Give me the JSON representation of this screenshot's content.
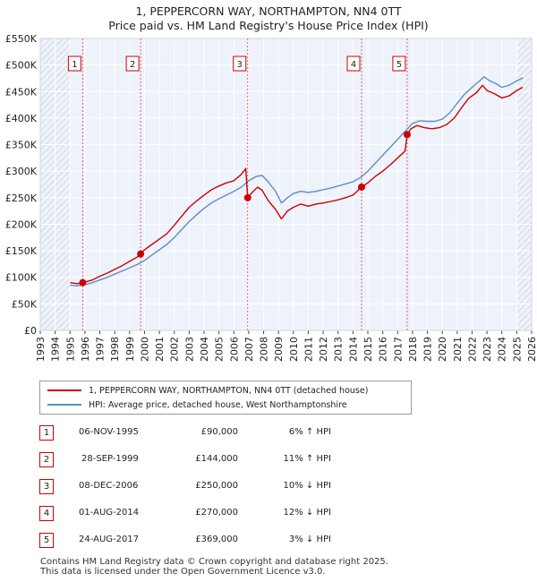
{
  "chart_data": {
    "type": "line",
    "title": "1, PEPPERCORN WAY, NORTHAMPTON, NN4 0TT",
    "subtitle": "Price paid vs. HM Land Registry's House Price Index (HPI)",
    "xlim": [
      1993,
      2026
    ],
    "ylim": [
      0,
      550000
    ],
    "x_ticks": [
      "1993",
      "1994",
      "1995",
      "1996",
      "1997",
      "1998",
      "1999",
      "2000",
      "2001",
      "2002",
      "2003",
      "2004",
      "2005",
      "2006",
      "2007",
      "2008",
      "2009",
      "2010",
      "2011",
      "2012",
      "2013",
      "2014",
      "2015",
      "2016",
      "2017",
      "2018",
      "2019",
      "2020",
      "2021",
      "2022",
      "2023",
      "2024",
      "2025",
      "2026"
    ],
    "y_ticks": [
      {
        "v": 0,
        "label": "£0"
      },
      {
        "v": 50000,
        "label": "£50K"
      },
      {
        "v": 100000,
        "label": "£100K"
      },
      {
        "v": 150000,
        "label": "£150K"
      },
      {
        "v": 200000,
        "label": "£200K"
      },
      {
        "v": 250000,
        "label": "£250K"
      },
      {
        "v": 300000,
        "label": "£300K"
      },
      {
        "v": 350000,
        "label": "£350K"
      },
      {
        "v": 400000,
        "label": "£400K"
      },
      {
        "v": 450000,
        "label": "£450K"
      },
      {
        "v": 500000,
        "label": "£500K"
      },
      {
        "v": 550000,
        "label": "£550K"
      }
    ],
    "hatched_before": 1995.0,
    "hatched_after": 2025.0,
    "series": [
      {
        "name": "1, PEPPERCORN WAY, NORTHAMPTON, NN4 0TT (detached house)",
        "color": "#cc0000",
        "x": [
          1995.0,
          1995.5,
          1995.85,
          1996.5,
          1997.0,
          1997.5,
          1998.0,
          1998.5,
          1999.0,
          1999.5,
          1999.74,
          2000.0,
          2000.5,
          2001.0,
          2001.5,
          2002.0,
          2002.5,
          2003.0,
          2003.5,
          2004.0,
          2004.5,
          2005.0,
          2005.5,
          2006.0,
          2006.5,
          2006.8,
          2006.93,
          2007.3,
          2007.6,
          2007.9,
          2008.3,
          2008.8,
          2009.2,
          2009.6,
          2010.0,
          2010.5,
          2011.0,
          2011.5,
          2012.0,
          2012.5,
          2013.0,
          2013.5,
          2014.0,
          2014.58,
          2015.0,
          2015.5,
          2016.0,
          2016.5,
          2017.0,
          2017.5,
          2017.64,
          2017.9,
          2018.3,
          2018.8,
          2019.3,
          2019.8,
          2020.3,
          2020.8,
          2021.3,
          2021.8,
          2022.3,
          2022.7,
          2023.0,
          2023.5,
          2024.0,
          2024.5,
          2025.0,
          2025.4
        ],
        "y": [
          90000,
          88000,
          90000,
          95000,
          102000,
          108000,
          115000,
          122000,
          130000,
          138000,
          144000,
          152000,
          162000,
          172000,
          182000,
          198000,
          215000,
          232000,
          244000,
          255000,
          265000,
          272000,
          278000,
          282000,
          294000,
          305000,
          250000,
          262000,
          270000,
          264000,
          245000,
          228000,
          210000,
          225000,
          232000,
          238000,
          234000,
          238000,
          240000,
          243000,
          246000,
          250000,
          255000,
          270000,
          278000,
          290000,
          300000,
          312000,
          325000,
          338000,
          369000,
          380000,
          386000,
          382000,
          380000,
          382000,
          388000,
          400000,
          420000,
          438000,
          448000,
          462000,
          452000,
          446000,
          438000,
          442000,
          452000,
          458000
        ]
      },
      {
        "name": "HPI: Average price, detached house, West Northamptonshire",
        "color": "#5b8dc9",
        "x": [
          1995.0,
          1995.5,
          1996.0,
          1996.5,
          1997.0,
          1997.5,
          1998.0,
          1998.5,
          1999.0,
          1999.5,
          2000.0,
          2000.5,
          2001.0,
          2001.5,
          2002.0,
          2002.5,
          2003.0,
          2003.5,
          2004.0,
          2004.5,
          2005.0,
          2005.5,
          2006.0,
          2006.5,
          2007.0,
          2007.5,
          2007.9,
          2008.3,
          2008.8,
          2009.2,
          2009.6,
          2010.0,
          2010.5,
          2011.0,
          2011.5,
          2012.0,
          2012.5,
          2013.0,
          2013.5,
          2014.0,
          2014.5,
          2015.0,
          2015.5,
          2016.0,
          2016.5,
          2017.0,
          2017.5,
          2018.0,
          2018.5,
          2019.0,
          2019.5,
          2020.0,
          2020.5,
          2021.0,
          2021.5,
          2022.0,
          2022.5,
          2022.8,
          2023.2,
          2023.6,
          2024.0,
          2024.5,
          2025.0,
          2025.4
        ],
        "y": [
          85000,
          84000,
          86000,
          90000,
          95000,
          100000,
          106000,
          112000,
          118000,
          124000,
          132000,
          142000,
          152000,
          162000,
          175000,
          190000,
          205000,
          218000,
          230000,
          240000,
          248000,
          255000,
          262000,
          270000,
          282000,
          290000,
          292000,
          280000,
          262000,
          240000,
          250000,
          258000,
          262000,
          260000,
          262000,
          265000,
          268000,
          272000,
          276000,
          280000,
          288000,
          300000,
          315000,
          330000,
          345000,
          360000,
          375000,
          390000,
          395000,
          394000,
          394000,
          398000,
          410000,
          428000,
          445000,
          458000,
          470000,
          478000,
          470000,
          465000,
          458000,
          462000,
          470000,
          476000
        ]
      }
    ],
    "sales": [
      {
        "n": "1",
        "x": 1995.85,
        "y": 90000,
        "date": "06-NOV-1995",
        "price": "£90,000",
        "hpi": "6% ↑ HPI"
      },
      {
        "n": "2",
        "x": 1999.74,
        "y": 144000,
        "date": "28-SEP-1999",
        "price": "£144,000",
        "hpi": "11% ↑ HPI"
      },
      {
        "n": "3",
        "x": 2006.93,
        "y": 250000,
        "date": "08-DEC-2006",
        "price": "£250,000",
        "hpi": "10% ↓ HPI"
      },
      {
        "n": "4",
        "x": 2014.58,
        "y": 270000,
        "date": "01-AUG-2014",
        "price": "£270,000",
        "hpi": "12% ↓ HPI"
      },
      {
        "n": "5",
        "x": 2017.64,
        "y": 369000,
        "date": "24-AUG-2017",
        "price": "£369,000",
        "hpi": "3% ↓ HPI"
      }
    ]
  },
  "legend": {
    "property": "1, PEPPERCORN WAY, NORTHAMPTON, NN4 0TT (detached house)",
    "hpi": "HPI: Average price, detached house, West Northamptonshire"
  },
  "footer": {
    "line1": "Contains HM Land Registry data © Crown copyright and database right 2025.",
    "line2": "This data is licensed under the Open Government Licence v3.0."
  }
}
